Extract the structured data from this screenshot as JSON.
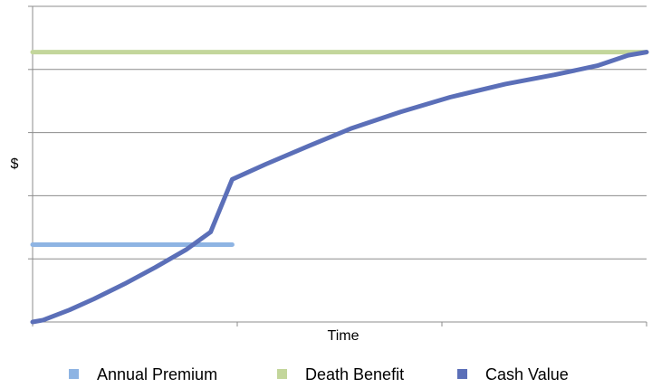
{
  "chart_data": {
    "type": "line",
    "title": "",
    "xlabel": "Time",
    "ylabel": "$",
    "grid": true,
    "legend_position": "bottom",
    "xlim": [
      0,
      100
    ],
    "ylim": [
      0,
      100
    ],
    "y_tick_count": 5,
    "x_tick_count": 3,
    "series": [
      {
        "name": "Annual Premium",
        "color": "#8EB4E3",
        "points": [
          [
            0,
            24.5
          ],
          [
            32.5,
            24.5
          ]
        ]
      },
      {
        "name": "Death Benefit",
        "color": "#C3D69B",
        "points": [
          [
            0,
            85.5
          ],
          [
            100,
            85.5
          ]
        ]
      },
      {
        "name": "Cash Value",
        "color": "#5B6FB8",
        "points": [
          [
            0,
            0
          ],
          [
            1.7,
            0.6
          ],
          [
            6,
            3.8
          ],
          [
            10,
            7.3
          ],
          [
            15,
            12.1
          ],
          [
            20,
            17.3
          ],
          [
            25,
            22.9
          ],
          [
            29,
            28.5
          ],
          [
            32.5,
            45.2
          ],
          [
            38,
            50
          ],
          [
            45,
            55.8
          ],
          [
            52,
            61.4
          ],
          [
            60,
            66.6
          ],
          [
            68,
            71.2
          ],
          [
            77,
            75.4
          ],
          [
            85,
            78.3
          ],
          [
            92,
            81.2
          ],
          [
            97,
            84.5
          ],
          [
            100,
            85.5
          ]
        ]
      }
    ]
  }
}
